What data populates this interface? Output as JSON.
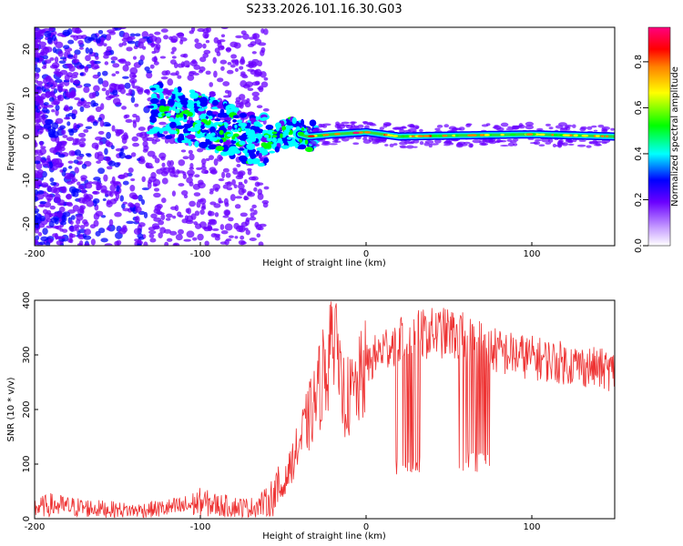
{
  "figure_title": "S233.2026.101.16.30.G03",
  "chart_data": [
    {
      "type": "heatmap",
      "name": "spectrogram",
      "title": "S233.2026.101.16.30.G03",
      "xlabel": "Height of straight line (km)",
      "ylabel": "Frequency (Hz)",
      "xlim": [
        -200,
        150
      ],
      "ylim": [
        -25,
        25
      ],
      "x_ticks": [
        -200,
        -100,
        0,
        100
      ],
      "x_tick_labels": [
        "-200",
        "-100",
        "0",
        "100"
      ],
      "y_ticks": [
        -20,
        -10,
        0,
        10,
        20
      ],
      "y_tick_labels": [
        "-20",
        "-10",
        "0",
        "10",
        "20"
      ],
      "ridge": {
        "description_points_x": [
          -125,
          -100,
          -80,
          -60,
          -45,
          -35,
          -20,
          0,
          20,
          50,
          100,
          150
        ],
        "description_points_y": [
          6,
          4,
          1,
          -1,
          1,
          0,
          0.5,
          1,
          0,
          0.2,
          0.5,
          0
        ],
        "peak_amplitude": 0.95
      },
      "colorbar": {
        "label": "Normalized spectral amplitude",
        "range": [
          0.0,
          0.95
        ],
        "ticks": [
          0.0,
          0.2,
          0.4,
          0.6,
          0.8
        ],
        "tick_labels": [
          "0.0",
          "0.2",
          "0.4",
          "0.6",
          "0.8"
        ],
        "colormap": [
          "#ffffff",
          "#8a2be2",
          "#0000ff",
          "#00ffff",
          "#00ff00",
          "#ffff00",
          "#ff8000",
          "#ff0000",
          "#ff00ff"
        ]
      }
    },
    {
      "type": "line",
      "name": "snr",
      "xlabel": "Height of straight line (km)",
      "ylabel": "SNR (10 * v/v)",
      "xlim": [
        -200,
        150
      ],
      "ylim": [
        0,
        400
      ],
      "x_ticks": [
        -200,
        -100,
        0,
        100
      ],
      "x_tick_labels": [
        "-200",
        "-100",
        "0",
        "100"
      ],
      "y_ticks": [
        0,
        100,
        200,
        300,
        400
      ],
      "y_tick_labels": [
        "0",
        "100",
        "200",
        "300",
        "400"
      ],
      "color": "#ee3333",
      "series": [
        {
          "name": "SNR envelope",
          "x": [
            -200,
            -190,
            -180,
            -160,
            -140,
            -125,
            -110,
            -100,
            -90,
            -80,
            -70,
            -60,
            -50,
            -45,
            -40,
            -35,
            -30,
            -25,
            -20,
            -15,
            -10,
            -5,
            0,
            10,
            20,
            30,
            40,
            50,
            60,
            70,
            80,
            90,
            100,
            110,
            120,
            130,
            140,
            150
          ],
          "y": [
            20,
            25,
            22,
            18,
            15,
            18,
            22,
            30,
            25,
            22,
            20,
            30,
            60,
            100,
            140,
            180,
            220,
            280,
            300,
            230,
            220,
            240,
            280,
            310,
            330,
            335,
            340,
            340,
            330,
            320,
            305,
            300,
            295,
            290,
            285,
            280,
            275,
            270
          ]
        }
      ],
      "dropouts": [
        {
          "x_range": [
            18,
            33
          ],
          "low": 75
        },
        {
          "x_range": [
            55,
            75
          ],
          "low": 85
        }
      ]
    }
  ]
}
